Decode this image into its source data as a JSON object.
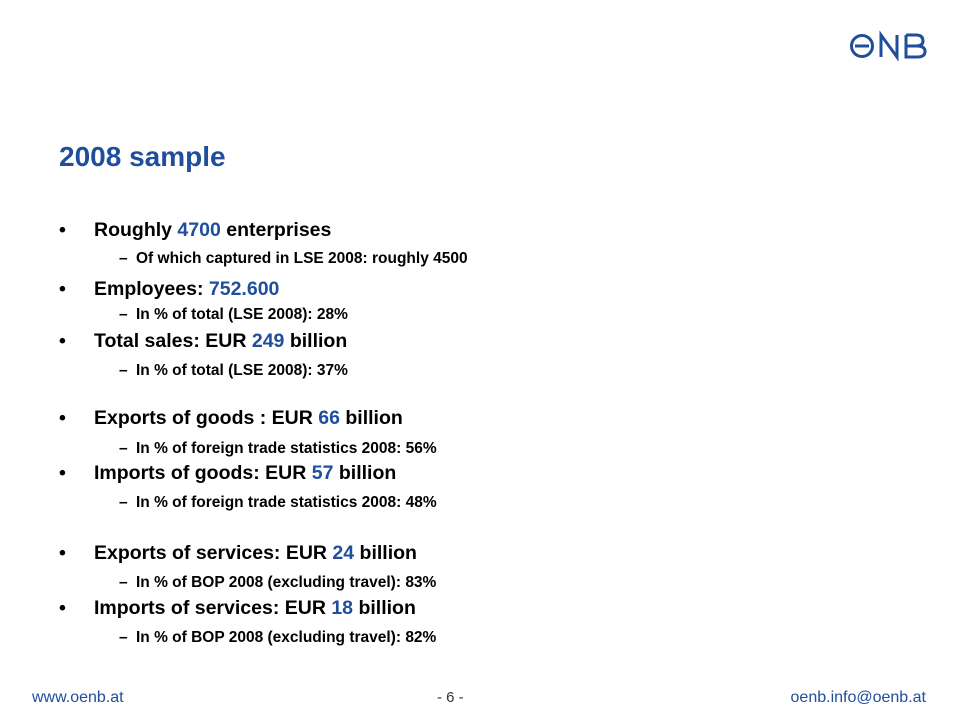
{
  "logo": {
    "text": "OeNB",
    "color": "#1f4e9c"
  },
  "title": "2008 sample",
  "items": [
    {
      "level": 1,
      "marker": "•",
      "pre": "Roughly ",
      "hl": "4700",
      "post": " enterprises"
    },
    {
      "level": 2,
      "marker": "–",
      "text": "Of which captured in LSE 2008: roughly 4500"
    },
    {
      "level": 1,
      "marker": "•",
      "pre": "Employees: ",
      "hl": "752.600",
      "post": ""
    },
    {
      "level": 2,
      "marker": "–",
      "text": "In % of total (LSE 2008): 28%"
    },
    {
      "level": 1,
      "marker": "•",
      "pre": "Total sales: EUR ",
      "hl": "249",
      "post": " billion"
    },
    {
      "level": 2,
      "marker": "–",
      "text": "In % of total (LSE 2008): 37%"
    },
    {
      "level": 1,
      "marker": "•",
      "pre": "Exports of goods : EUR ",
      "hl": "66",
      "post": " billion"
    },
    {
      "level": 2,
      "marker": "–",
      "text": "In % of foreign trade statistics 2008: 56%"
    },
    {
      "level": 1,
      "marker": "•",
      "pre": "Imports of goods: EUR ",
      "hl": "57",
      "post": " billion"
    },
    {
      "level": 2,
      "marker": "–",
      "text": "In % of foreign trade statistics 2008: 48%"
    },
    {
      "level": 1,
      "marker": "•",
      "pre": "Exports of services: EUR ",
      "hl": "24",
      "post": " billion"
    },
    {
      "level": 2,
      "marker": "–",
      "text": "In % of BOP 2008 (excluding travel): 83%"
    },
    {
      "level": 1,
      "marker": "•",
      "pre": "Imports of services: EUR ",
      "hl": "18",
      "post": " billion"
    },
    {
      "level": 2,
      "marker": "–",
      "text": "In % of BOP 2008 (excluding travel): 82%"
    }
  ],
  "footer": {
    "website": "www.oenb.at",
    "page": "- 6 -",
    "email": "oenb.info@oenb.at"
  },
  "colors": {
    "accent": "#1f4e9c",
    "text": "#000000"
  }
}
